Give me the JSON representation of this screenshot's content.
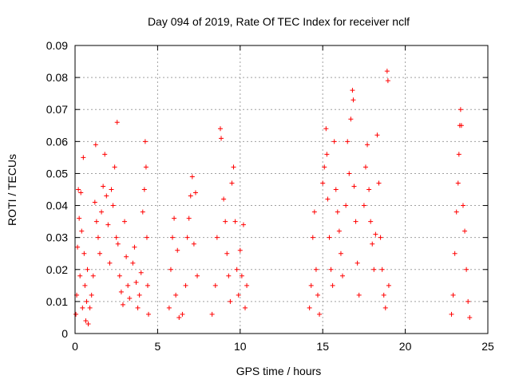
{
  "chart_data": {
    "type": "scatter",
    "title": "Day 094 of 2019, Rate Of TEC Index for receiver nclf",
    "xlabel": "GPS time / hours",
    "ylabel": "ROTI / TECUs",
    "xlim": [
      0,
      25
    ],
    "ylim": [
      0,
      0.09
    ],
    "x_ticks": [
      0,
      5,
      10,
      15,
      20,
      25
    ],
    "x_tick_labels": [
      "0",
      "5",
      "10",
      "15",
      "20",
      "25"
    ],
    "y_ticks": [
      0,
      0.01,
      0.02,
      0.03,
      0.04,
      0.05,
      0.06,
      0.07,
      0.08,
      0.09
    ],
    "y_tick_labels": [
      "0",
      "0.01",
      "0.02",
      "0.03",
      "0.04",
      "0.05",
      "0.06",
      "0.07",
      "0.08",
      "0.09"
    ],
    "grid": true,
    "marker": "+",
    "color": "#ff0000",
    "series": [
      {
        "name": "ROTI",
        "points": [
          [
            0.05,
            0.006
          ],
          [
            0.1,
            0.012
          ],
          [
            0.15,
            0.027
          ],
          [
            0.2,
            0.045
          ],
          [
            0.25,
            0.036
          ],
          [
            0.3,
            0.018
          ],
          [
            0.35,
            0.044
          ],
          [
            0.4,
            0.032
          ],
          [
            0.45,
            0.008
          ],
          [
            0.5,
            0.055
          ],
          [
            0.55,
            0.025
          ],
          [
            0.6,
            0.015
          ],
          [
            0.65,
            0.004
          ],
          [
            0.7,
            0.01
          ],
          [
            0.75,
            0.02
          ],
          [
            0.8,
            0.003
          ],
          [
            0.9,
            0.008
          ],
          [
            1.0,
            0.012
          ],
          [
            1.1,
            0.018
          ],
          [
            1.2,
            0.041
          ],
          [
            1.25,
            0.059
          ],
          [
            1.3,
            0.035
          ],
          [
            1.4,
            0.03
          ],
          [
            1.5,
            0.025
          ],
          [
            1.6,
            0.038
          ],
          [
            1.7,
            0.046
          ],
          [
            1.8,
            0.056
          ],
          [
            1.9,
            0.043
          ],
          [
            2.0,
            0.034
          ],
          [
            2.1,
            0.022
          ],
          [
            2.2,
            0.045
          ],
          [
            2.3,
            0.04
          ],
          [
            2.4,
            0.052
          ],
          [
            2.5,
            0.03
          ],
          [
            2.55,
            0.066
          ],
          [
            2.6,
            0.028
          ],
          [
            2.7,
            0.018
          ],
          [
            2.8,
            0.013
          ],
          [
            2.9,
            0.009
          ],
          [
            3.0,
            0.035
          ],
          [
            3.1,
            0.024
          ],
          [
            3.2,
            0.015
          ],
          [
            3.3,
            0.011
          ],
          [
            3.5,
            0.022
          ],
          [
            3.6,
            0.027
          ],
          [
            3.7,
            0.016
          ],
          [
            3.8,
            0.008
          ],
          [
            3.9,
            0.012
          ],
          [
            4.0,
            0.019
          ],
          [
            4.1,
            0.038
          ],
          [
            4.2,
            0.045
          ],
          [
            4.25,
            0.06
          ],
          [
            4.3,
            0.052
          ],
          [
            4.35,
            0.03
          ],
          [
            4.4,
            0.015
          ],
          [
            4.45,
            0.006
          ],
          [
            5.7,
            0.008
          ],
          [
            5.8,
            0.02
          ],
          [
            5.9,
            0.03
          ],
          [
            6.0,
            0.036
          ],
          [
            6.1,
            0.012
          ],
          [
            6.2,
            0.026
          ],
          [
            6.3,
            0.005
          ],
          [
            6.5,
            0.006
          ],
          [
            6.7,
            0.015
          ],
          [
            6.8,
            0.03
          ],
          [
            6.9,
            0.036
          ],
          [
            7.0,
            0.043
          ],
          [
            7.1,
            0.049
          ],
          [
            7.2,
            0.028
          ],
          [
            7.3,
            0.044
          ],
          [
            7.4,
            0.018
          ],
          [
            8.3,
            0.006
          ],
          [
            8.5,
            0.015
          ],
          [
            8.6,
            0.03
          ],
          [
            8.8,
            0.064
          ],
          [
            8.85,
            0.061
          ],
          [
            9.0,
            0.042
          ],
          [
            9.1,
            0.035
          ],
          [
            9.2,
            0.025
          ],
          [
            9.3,
            0.018
          ],
          [
            9.4,
            0.01
          ],
          [
            9.5,
            0.047
          ],
          [
            9.6,
            0.052
          ],
          [
            9.7,
            0.035
          ],
          [
            9.8,
            0.02
          ],
          [
            9.9,
            0.012
          ],
          [
            10.0,
            0.026
          ],
          [
            10.1,
            0.018
          ],
          [
            10.2,
            0.034
          ],
          [
            10.3,
            0.008
          ],
          [
            10.4,
            0.015
          ],
          [
            14.2,
            0.008
          ],
          [
            14.3,
            0.015
          ],
          [
            14.4,
            0.03
          ],
          [
            14.5,
            0.038
          ],
          [
            14.6,
            0.02
          ],
          [
            14.7,
            0.012
          ],
          [
            14.8,
            0.006
          ],
          [
            15.0,
            0.047
          ],
          [
            15.1,
            0.052
          ],
          [
            15.2,
            0.064
          ],
          [
            15.25,
            0.056
          ],
          [
            15.3,
            0.042
          ],
          [
            15.4,
            0.03
          ],
          [
            15.5,
            0.02
          ],
          [
            15.6,
            0.015
          ],
          [
            15.7,
            0.06
          ],
          [
            15.8,
            0.045
          ],
          [
            15.9,
            0.038
          ],
          [
            16.0,
            0.032
          ],
          [
            16.1,
            0.025
          ],
          [
            16.2,
            0.018
          ],
          [
            16.4,
            0.04
          ],
          [
            16.5,
            0.06
          ],
          [
            16.6,
            0.05
          ],
          [
            16.7,
            0.067
          ],
          [
            16.8,
            0.076
          ],
          [
            16.85,
            0.073
          ],
          [
            16.9,
            0.046
          ],
          [
            17.0,
            0.035
          ],
          [
            17.1,
            0.022
          ],
          [
            17.2,
            0.012
          ],
          [
            17.5,
            0.04
          ],
          [
            17.6,
            0.052
          ],
          [
            17.7,
            0.059
          ],
          [
            17.8,
            0.045
          ],
          [
            17.9,
            0.035
          ],
          [
            18.0,
            0.028
          ],
          [
            18.1,
            0.02
          ],
          [
            18.2,
            0.031
          ],
          [
            18.3,
            0.062
          ],
          [
            18.4,
            0.047
          ],
          [
            18.5,
            0.03
          ],
          [
            18.6,
            0.02
          ],
          [
            18.7,
            0.012
          ],
          [
            18.8,
            0.008
          ],
          [
            18.9,
            0.082
          ],
          [
            18.95,
            0.079
          ],
          [
            19.0,
            0.015
          ],
          [
            22.8,
            0.006
          ],
          [
            22.9,
            0.012
          ],
          [
            23.0,
            0.025
          ],
          [
            23.1,
            0.038
          ],
          [
            23.2,
            0.047
          ],
          [
            23.25,
            0.056
          ],
          [
            23.3,
            0.065
          ],
          [
            23.35,
            0.07
          ],
          [
            23.4,
            0.065
          ],
          [
            23.5,
            0.04
          ],
          [
            23.6,
            0.032
          ],
          [
            23.7,
            0.02
          ],
          [
            23.8,
            0.01
          ],
          [
            23.9,
            0.005
          ]
        ]
      }
    ]
  }
}
